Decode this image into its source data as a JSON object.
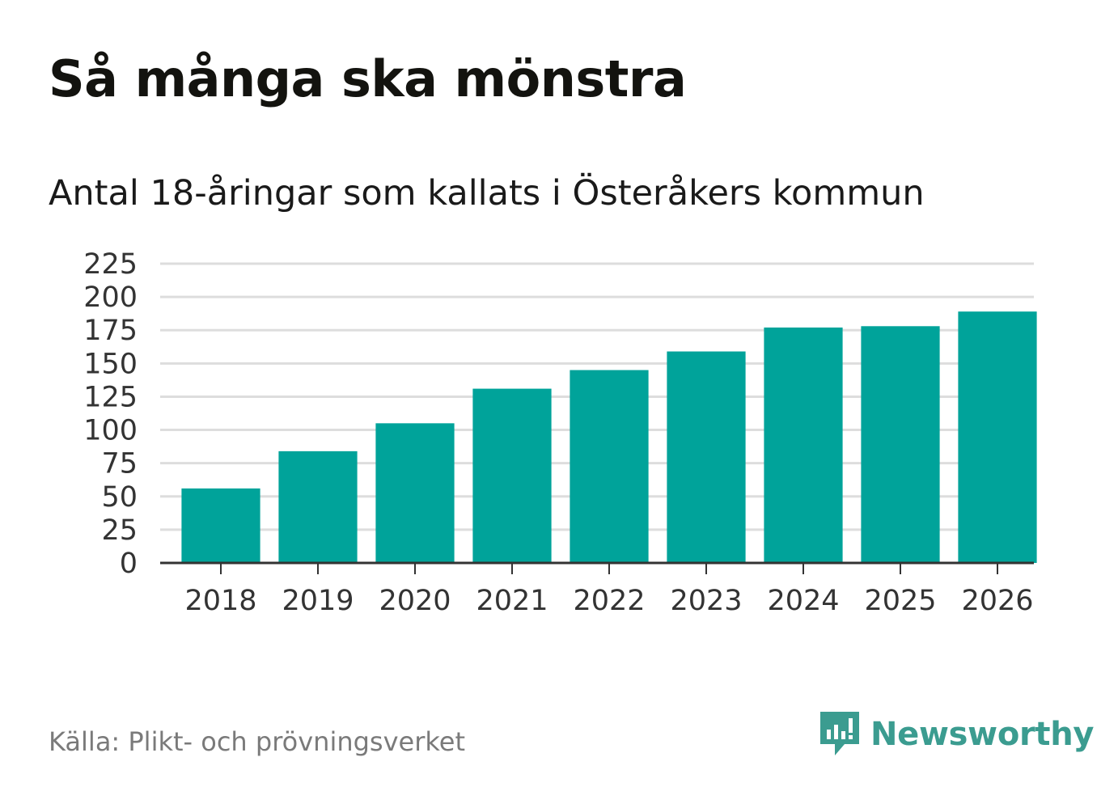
{
  "header": {
    "title": "Så många ska mönstra",
    "subtitle": "Antal 18-åringar som kallats i Österåkers kommun"
  },
  "chart_data": {
    "type": "bar",
    "title": "Så många ska mönstra",
    "subtitle": "Antal 18-åringar som kallats i Österåkers kommun",
    "xlabel": "",
    "ylabel": "",
    "categories": [
      "2018",
      "2019",
      "2020",
      "2021",
      "2022",
      "2023",
      "2024",
      "2025",
      "2026"
    ],
    "values": [
      56,
      84,
      105,
      131,
      145,
      159,
      177,
      178,
      189
    ],
    "ylim": [
      0,
      225
    ],
    "yticks": [
      0,
      25,
      50,
      75,
      100,
      125,
      150,
      175,
      200,
      225
    ],
    "grid": true,
    "bar_color": "#00a39a",
    "grid_color": "#dddddd",
    "axis_color": "#333333"
  },
  "footer": {
    "source": "Källa: Plikt- och prövningsverket",
    "brand": "Newsworthy",
    "brand_color": "#3b9c90",
    "brand_icon": "newsworthy-logo-icon"
  }
}
